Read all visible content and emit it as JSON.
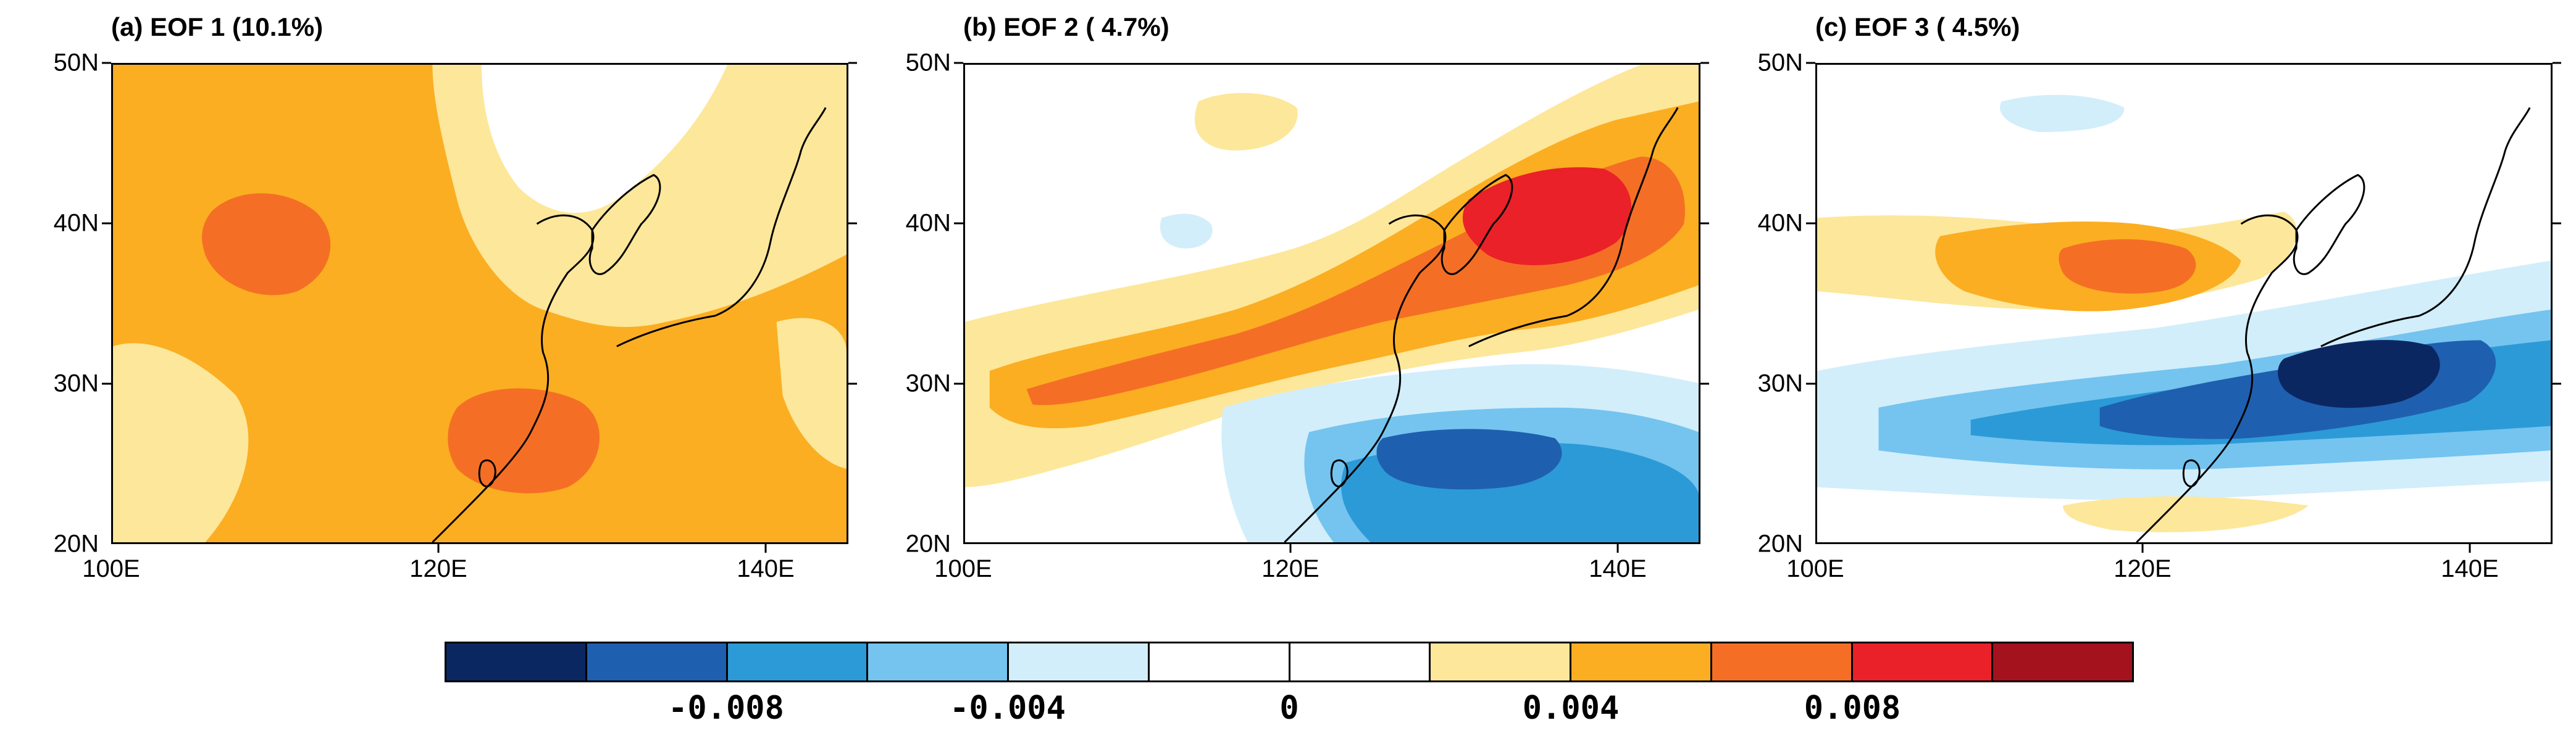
{
  "panels": [
    {
      "title": "(a) EOF 1 (10.1%)",
      "lat_labels": [
        "20N",
        "30N",
        "40N",
        "50N"
      ],
      "lon_labels": [
        "100E",
        "120E",
        "140E"
      ],
      "pattern": "uniform positive loading over East Asia; maxima over central China and East China Sea / Taiwan"
    },
    {
      "title": "(b) EOF 2 ( 4.7%)",
      "lat_labels": [
        "20N",
        "30N",
        "40N",
        "50N"
      ],
      "lon_labels": [
        "100E",
        "120E",
        "140E"
      ],
      "pattern": "positive band from southern China through Korea to Japan; negative center south of Japan"
    },
    {
      "title": "(c) EOF 3 ( 4.5%)",
      "lat_labels": [
        "20N",
        "30N",
        "40N",
        "50N"
      ],
      "lon_labels": [
        "100E",
        "120E",
        "140E"
      ],
      "pattern": "positive over North China / Korea; strong negative band across Yangtze, East China Sea and southern Japan"
    }
  ],
  "map_extent": {
    "lon_range": [
      100,
      145
    ],
    "lat_range": [
      20,
      50
    ]
  },
  "colorbar": {
    "labels": [
      "-0.008",
      "-0.004",
      "0",
      "0.004",
      "0.008"
    ],
    "colors": [
      "#0b2762",
      "#1f5fb0",
      "#2c9ad6",
      "#74c4ef",
      "#d2eefb",
      "#ffffff",
      "#ffffff",
      "#fde79a",
      "#fbae22",
      "#f46f25",
      "#ea2128",
      "#a3121d"
    ]
  }
}
